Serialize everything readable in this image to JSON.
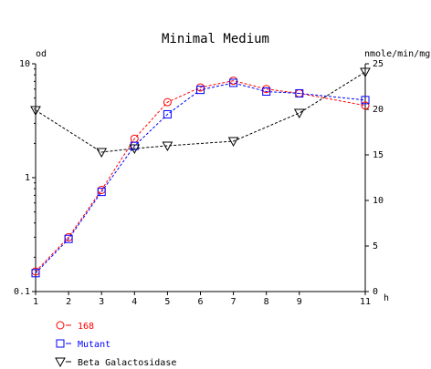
{
  "chart_data": {
    "type": "line",
    "title": "Minimal Medium",
    "x": [
      1,
      2,
      3,
      4,
      5,
      6,
      7,
      8,
      9,
      11
    ],
    "xlabel": "h",
    "ylabel_left": "od",
    "ylabel_right": "nmole/min/mg",
    "x_range": [
      1,
      11
    ],
    "x_ticks": [
      1,
      2,
      3,
      4,
      5,
      6,
      7,
      8,
      9,
      11
    ],
    "y_left_scale": "log",
    "y_left_range": [
      0.1,
      10
    ],
    "y_left_ticks": [
      "0.1",
      "1",
      "10"
    ],
    "y_right_range": [
      0,
      25
    ],
    "y_right_ticks": [
      0,
      5,
      10,
      15,
      20,
      25
    ],
    "legend_position": "bottom-left",
    "series": [
      {
        "name": "168",
        "axis": "left",
        "color": "#ff0000",
        "marker": "circle",
        "values": [
          0.15,
          0.3,
          0.78,
          2.2,
          4.6,
          6.2,
          7.1,
          6.0,
          5.5,
          4.3
        ]
      },
      {
        "name": "Mutant",
        "axis": "left",
        "color": "#0000ff",
        "marker": "square",
        "values": [
          0.145,
          0.29,
          0.75,
          1.9,
          3.6,
          5.9,
          6.8,
          5.7,
          5.5,
          4.8
        ]
      },
      {
        "name": "Beta Galactosidase",
        "axis": "right",
        "color": "#000000",
        "marker": "triangle-down",
        "values": [
          19.9,
          15.3,
          null,
          15.7,
          16.0,
          null,
          16.5,
          null,
          19.6,
          24.1
        ],
        "x_override": [
          1,
          3,
          null,
          4,
          5,
          null,
          7,
          null,
          9,
          11
        ]
      }
    ]
  }
}
